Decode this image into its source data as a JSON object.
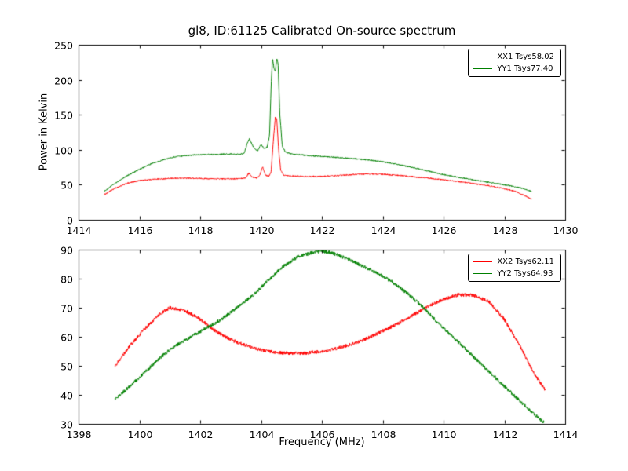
{
  "figure": {
    "title": "gl8, ID:61125 Calibrated On-source spectrum",
    "background": "#ffffff",
    "frame_color": "#000000"
  },
  "chart_data": [
    {
      "type": "line",
      "title": "gl8, ID:61125 Calibrated On-source spectrum",
      "xlabel": "",
      "ylabel": "Power in Kelvin",
      "xlim": [
        1414,
        1430
      ],
      "ylim": [
        0,
        250
      ],
      "xticks": [
        1414,
        1416,
        1418,
        1420,
        1422,
        1424,
        1426,
        1428,
        1430
      ],
      "yticks": [
        0,
        50,
        100,
        150,
        200,
        250
      ],
      "grid": false,
      "legend_position": "upper right",
      "noise": 0.9,
      "series": [
        {
          "name": "XX1 Tsys58.02",
          "color": "#ff0000",
          "points": [
            [
              1414.85,
              36
            ],
            [
              1415.2,
              45
            ],
            [
              1415.6,
              52
            ],
            [
              1416.0,
              56
            ],
            [
              1416.5,
              58
            ],
            [
              1417.0,
              59
            ],
            [
              1417.5,
              59.5
            ],
            [
              1418.0,
              59
            ],
            [
              1418.5,
              58.5
            ],
            [
              1419.0,
              58.5
            ],
            [
              1419.35,
              59
            ],
            [
              1419.5,
              60
            ],
            [
              1419.6,
              67
            ],
            [
              1419.7,
              61
            ],
            [
              1419.85,
              59.5
            ],
            [
              1419.95,
              63
            ],
            [
              1420.05,
              76
            ],
            [
              1420.15,
              64
            ],
            [
              1420.25,
              62
            ],
            [
              1420.33,
              68
            ],
            [
              1420.4,
              110
            ],
            [
              1420.47,
              147
            ],
            [
              1420.52,
              143
            ],
            [
              1420.58,
              100
            ],
            [
              1420.65,
              70
            ],
            [
              1420.75,
              64
            ],
            [
              1421.0,
              62.5
            ],
            [
              1421.5,
              62
            ],
            [
              1422.0,
              62
            ],
            [
              1422.5,
              63
            ],
            [
              1423.0,
              64.5
            ],
            [
              1423.5,
              65.5
            ],
            [
              1424.0,
              65
            ],
            [
              1424.5,
              63.5
            ],
            [
              1425.0,
              61.5
            ],
            [
              1425.5,
              59.5
            ],
            [
              1426.0,
              57
            ],
            [
              1426.5,
              54.5
            ],
            [
              1427.0,
              51.5
            ],
            [
              1427.5,
              48.5
            ],
            [
              1428.0,
              44.5
            ],
            [
              1428.4,
              40
            ],
            [
              1428.9,
              29.5
            ]
          ]
        },
        {
          "name": "YY1 Tsys77.40",
          "color": "#008000",
          "points": [
            [
              1414.85,
              41
            ],
            [
              1415.2,
              52
            ],
            [
              1415.6,
              63
            ],
            [
              1416.0,
              72
            ],
            [
              1416.4,
              80
            ],
            [
              1416.8,
              86
            ],
            [
              1417.2,
              90
            ],
            [
              1417.6,
              92
            ],
            [
              1418.0,
              93
            ],
            [
              1418.5,
              93.5
            ],
            [
              1419.0,
              94
            ],
            [
              1419.3,
              93.5
            ],
            [
              1419.45,
              95
            ],
            [
              1419.55,
              110
            ],
            [
              1419.62,
              116
            ],
            [
              1419.7,
              108
            ],
            [
              1419.8,
              101
            ],
            [
              1419.9,
              99
            ],
            [
              1420.0,
              108
            ],
            [
              1420.1,
              102
            ],
            [
              1420.2,
              104
            ],
            [
              1420.28,
              120
            ],
            [
              1420.34,
              200
            ],
            [
              1420.38,
              231
            ],
            [
              1420.42,
              218
            ],
            [
              1420.47,
              212
            ],
            [
              1420.52,
              230
            ],
            [
              1420.56,
              224
            ],
            [
              1420.62,
              150
            ],
            [
              1420.7,
              105
            ],
            [
              1420.8,
              97
            ],
            [
              1421.0,
              94
            ],
            [
              1421.5,
              92
            ],
            [
              1422.0,
              90.5
            ],
            [
              1422.5,
              89
            ],
            [
              1423.0,
              87.5
            ],
            [
              1423.5,
              85.5
            ],
            [
              1424.0,
              83
            ],
            [
              1424.5,
              79
            ],
            [
              1425.0,
              74.5
            ],
            [
              1425.5,
              69.5
            ],
            [
              1426.0,
              64.5
            ],
            [
              1426.5,
              60.5
            ],
            [
              1427.0,
              57
            ],
            [
              1427.5,
              53.5
            ],
            [
              1428.0,
              50
            ],
            [
              1428.5,
              46
            ],
            [
              1428.9,
              40.5
            ]
          ]
        }
      ]
    },
    {
      "type": "line",
      "title": "",
      "xlabel": "Frequency (MHz)",
      "ylabel": "",
      "xlim": [
        1398,
        1414
      ],
      "ylim": [
        30,
        90
      ],
      "xticks": [
        1398,
        1400,
        1402,
        1404,
        1406,
        1408,
        1410,
        1412,
        1414
      ],
      "yticks": [
        30,
        40,
        50,
        60,
        70,
        80,
        90
      ],
      "grid": false,
      "legend_position": "upper right",
      "noise": 0.6,
      "series": [
        {
          "name": "XX2 Tsys62.11",
          "color": "#ff0000",
          "points": [
            [
              1399.2,
              50
            ],
            [
              1399.7,
              57
            ],
            [
              1400.2,
              63
            ],
            [
              1400.7,
              68
            ],
            [
              1401.0,
              70
            ],
            [
              1401.5,
              69
            ],
            [
              1402.0,
              66
            ],
            [
              1402.5,
              62
            ],
            [
              1403.0,
              59
            ],
            [
              1403.5,
              57
            ],
            [
              1404.0,
              55.5
            ],
            [
              1404.5,
              54.5
            ],
            [
              1405.0,
              54.3
            ],
            [
              1405.5,
              54.4
            ],
            [
              1406.0,
              55
            ],
            [
              1406.5,
              56
            ],
            [
              1407.0,
              57.5
            ],
            [
              1407.5,
              59.5
            ],
            [
              1408.0,
              62
            ],
            [
              1408.5,
              64.5
            ],
            [
              1409.0,
              67.5
            ],
            [
              1409.5,
              70.5
            ],
            [
              1410.0,
              73
            ],
            [
              1410.5,
              74.5
            ],
            [
              1411.0,
              74.3
            ],
            [
              1411.5,
              72
            ],
            [
              1412.0,
              66
            ],
            [
              1412.5,
              57
            ],
            [
              1413.0,
              47
            ],
            [
              1413.35,
              41.5
            ]
          ]
        },
        {
          "name": "YY2 Tsys64.93",
          "color": "#008000",
          "points": [
            [
              1399.2,
              38.5
            ],
            [
              1399.7,
              43
            ],
            [
              1400.2,
              48
            ],
            [
              1400.7,
              53
            ],
            [
              1401.2,
              57
            ],
            [
              1401.7,
              60
            ],
            [
              1402.2,
              63
            ],
            [
              1402.7,
              66
            ],
            [
              1403.2,
              70
            ],
            [
              1403.7,
              74
            ],
            [
              1404.2,
              79
            ],
            [
              1404.7,
              84
            ],
            [
              1405.2,
              87.5
            ],
            [
              1405.7,
              89
            ],
            [
              1406.0,
              89.5
            ],
            [
              1406.3,
              89
            ],
            [
              1406.8,
              87
            ],
            [
              1407.3,
              84.5
            ],
            [
              1407.8,
              82
            ],
            [
              1408.3,
              79
            ],
            [
              1408.8,
              75
            ],
            [
              1409.3,
              70.5
            ],
            [
              1409.8,
              65
            ],
            [
              1410.3,
              60
            ],
            [
              1410.8,
              55
            ],
            [
              1411.3,
              50
            ],
            [
              1411.8,
              45
            ],
            [
              1412.3,
              40
            ],
            [
              1412.8,
              35
            ],
            [
              1413.3,
              30.5
            ]
          ]
        }
      ]
    }
  ]
}
